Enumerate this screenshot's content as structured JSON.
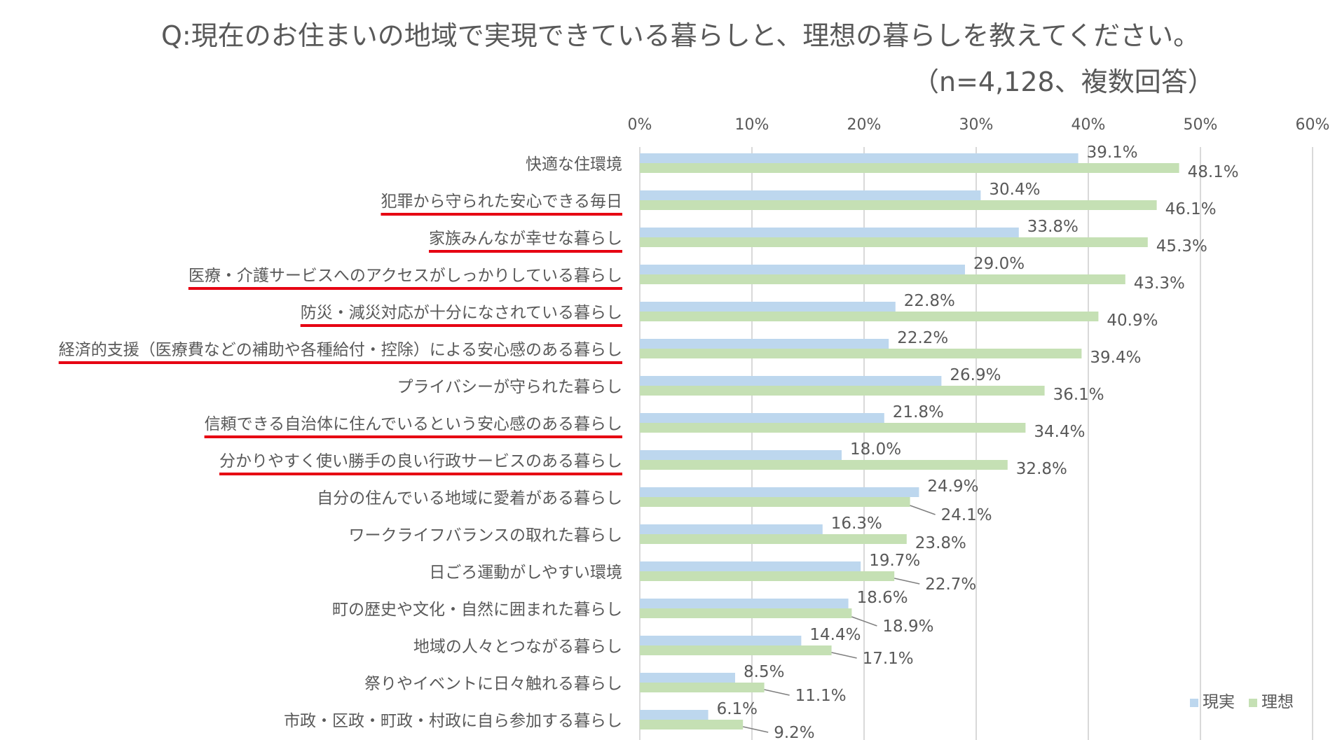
{
  "chart_data": {
    "type": "bar",
    "orientation": "horizontal",
    "title": "Q:現在のお住まいの地域で実現できている暮らしと、理想の暮らしを教えてください。",
    "subtitle": "（n=4,128、複数回答）",
    "xlim": [
      0,
      60
    ],
    "tick_labels": [
      "0%",
      "10%",
      "20%",
      "30%",
      "40%",
      "50%",
      "60%"
    ],
    "categories": [
      "快適な住環境",
      "犯罪から守られた安心できる毎日",
      "家族みんなが幸せな暮らし",
      "医療・介護サービスへのアクセスがしっかりしている暮らし",
      "防災・減災対応が十分になされている暮らし",
      "経済的支援（医療費などの補助や各種給付・控除）による安心感のある暮らし",
      "プライバシーが守られた暮らし",
      "信頼できる自治体に住んでいるという安心感のある暮らし",
      "分かりやすく使い勝手の良い行政サービスのある暮らし",
      "自分の住んでいる地域に愛着がある暮らし",
      "ワークライフバランスの取れた暮らし",
      "日ごろ運動がしやすい環境",
      "町の歴史や文化・自然に囲まれた暮らし",
      "地域の人々とつながる暮らし",
      "祭りやイベントに日々触れる暮らし",
      "市政・区政・町政・村政に自ら参加する暮らし"
    ],
    "underlined": [
      false,
      true,
      true,
      true,
      true,
      true,
      false,
      true,
      true,
      false,
      false,
      false,
      false,
      false,
      false,
      false
    ],
    "series": [
      {
        "name": "現実",
        "color": "#bdd7ee",
        "values": [
          39.1,
          30.4,
          33.8,
          29.0,
          22.8,
          22.2,
          26.9,
          21.8,
          18.0,
          24.9,
          16.3,
          19.7,
          18.6,
          14.4,
          8.5,
          6.1
        ]
      },
      {
        "name": "理想",
        "color": "#c5e0b4",
        "values": [
          48.1,
          46.1,
          45.3,
          43.3,
          40.9,
          39.4,
          36.1,
          34.4,
          32.8,
          24.1,
          23.8,
          22.7,
          18.9,
          17.1,
          11.1,
          9.2
        ]
      }
    ],
    "grid": true,
    "legend": "bottom-right",
    "underline_color": "#e60012",
    "grid_color": "#d9d9d9"
  }
}
